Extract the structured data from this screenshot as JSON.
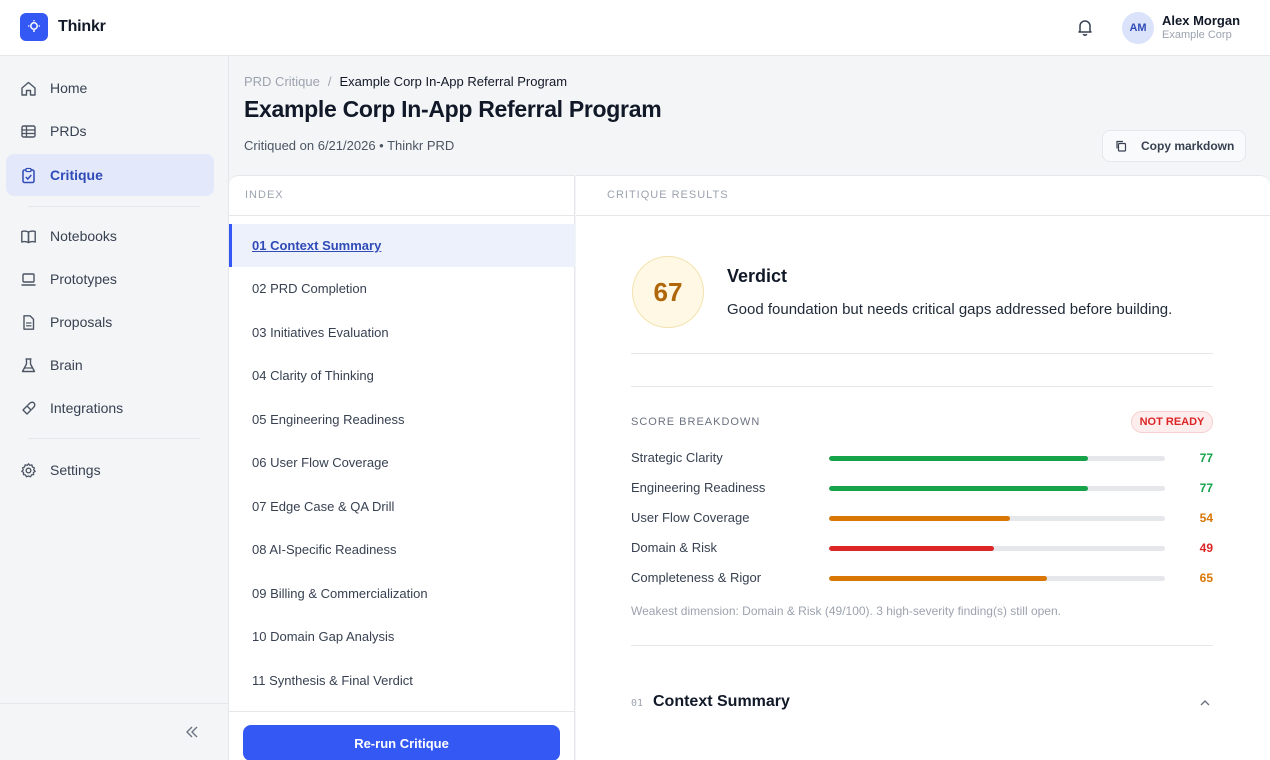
{
  "app": {
    "name": "Thinkr"
  },
  "user": {
    "initials": "AM",
    "name": "Alex Morgan",
    "org": "Example Corp"
  },
  "sidebar": {
    "items": [
      {
        "label": "Home",
        "icon": "home-icon"
      },
      {
        "label": "PRDs",
        "icon": "table-icon"
      },
      {
        "label": "Critique",
        "icon": "clipboard-check-icon",
        "active": true
      },
      {
        "label": "Notebooks",
        "icon": "book-icon"
      },
      {
        "label": "Prototypes",
        "icon": "laptop-icon"
      },
      {
        "label": "Proposals",
        "icon": "document-icon"
      },
      {
        "label": "Brain",
        "icon": "flask-icon"
      },
      {
        "label": "Integrations",
        "icon": "plug-icon"
      },
      {
        "label": "Settings",
        "icon": "gear-icon"
      }
    ]
  },
  "breadcrumb": {
    "parent": "PRD Critique",
    "separator": "/",
    "current": "Example Corp In-App Referral Program"
  },
  "page": {
    "title": "Example Corp In-App Referral Program",
    "meta": "Critiqued on 6/21/2026 • Thinkr PRD",
    "copy_label": "Copy markdown"
  },
  "index": {
    "heading": "INDEX",
    "items": [
      "01 Context Summary",
      "02 PRD Completion",
      "03 Initiatives Evaluation",
      "04 Clarity of Thinking",
      "05 Engineering Readiness",
      "06 User Flow Coverage",
      "07 Edge Case & QA Drill",
      "08 AI-Specific Readiness",
      "09 Billing & Commercialization",
      "10 Domain Gap Analysis",
      "11 Synthesis & Final Verdict"
    ],
    "active_index": 0,
    "rerun_label": "Re-run Critique"
  },
  "results": {
    "heading": "CRITIQUE RESULTS",
    "score": "67",
    "verdict_title": "Verdict",
    "verdict_text": "Good foundation but needs critical gaps addressed before building.",
    "breakdown_label": "SCORE BREAKDOWN",
    "status_badge": "NOT READY",
    "metrics": [
      {
        "name": "Strategic Clarity",
        "value": 77,
        "display": "77",
        "color": "#16a34a"
      },
      {
        "name": "Engineering Readiness",
        "value": 77,
        "display": "77",
        "color": "#16a34a"
      },
      {
        "name": "User Flow Coverage",
        "value": 54,
        "display": "54",
        "color": "#d97706"
      },
      {
        "name": "Domain & Risk",
        "value": 49,
        "display": "49",
        "color": "#dc2626"
      },
      {
        "name": "Completeness & Rigor",
        "value": 65,
        "display": "65",
        "color": "#d97706"
      }
    ],
    "note": "Weakest dimension: Domain & Risk (49/100). 3 high-severity finding(s) still open.",
    "section": {
      "number": "01",
      "title": "Context Summary"
    }
  },
  "colors": {
    "accent": "#3358f4",
    "score": "#b0670b",
    "danger": "#dc2626"
  }
}
